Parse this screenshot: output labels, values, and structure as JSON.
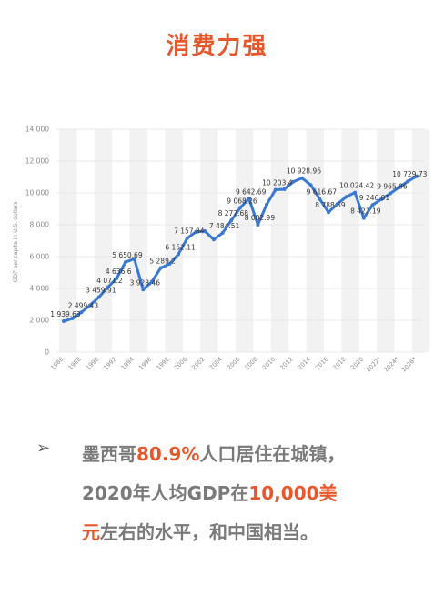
{
  "page": {
    "title": "消费力强"
  },
  "chart_data": {
    "type": "line",
    "ylabel": "GDP per capita in U.S. dollars",
    "xlabel": "",
    "ylim": [
      0,
      14000
    ],
    "yticks": [
      0,
      2000,
      4000,
      6000,
      8000,
      10000,
      12000,
      14000
    ],
    "ytick_labels": [
      "0",
      "2 000",
      "4 000",
      "6 000",
      "8 000",
      "10 000",
      "12 000",
      "14 000"
    ],
    "xtick_labels": [
      "1986",
      "1988",
      "1990",
      "1992",
      "1994",
      "1996",
      "1998",
      "2000",
      "2002",
      "2004",
      "2006",
      "2008",
      "2010",
      "2012",
      "2014",
      "2016",
      "2018",
      "2020",
      "2022*",
      "2024*",
      "2026*"
    ],
    "grid": true,
    "line_color": "#3a78d4",
    "x": [
      1986,
      1987,
      1988,
      1989,
      1990,
      1991,
      1992,
      1993,
      1994,
      1995,
      1996,
      1997,
      1998,
      1999,
      2000,
      2001,
      2002,
      2003,
      2004,
      2005,
      2006,
      2007,
      2008,
      2009,
      2010,
      2011,
      2012,
      2013,
      2014,
      2015,
      2016,
      2017,
      2018,
      2019,
      2020,
      2021,
      2022,
      2023,
      2024,
      2025,
      2026
    ],
    "values": [
      1939.63,
      2120,
      2499.43,
      2950,
      3459.91,
      4071.2,
      4636.6,
      5650.69,
      5860,
      3928.46,
      4430,
      5289.2,
      5540,
      6152.11,
      7157.84,
      7560,
      7600,
      7070,
      7484.51,
      8277.68,
      9068.26,
      9642.69,
      8002.99,
      9270,
      10203.4,
      10230,
      10700,
      10928.96,
      10500,
      9616.67,
      8788.59,
      9300,
      9750,
      10024.42,
      8421.19,
      9246.01,
      9600,
      9965.86,
      10350,
      10729.73,
      11050
    ],
    "data_labels": [
      {
        "x": 1986,
        "text": "1 939.63"
      },
      {
        "x": 1988,
        "text": "2 499.43"
      },
      {
        "x": 1990,
        "text": "3 459.91"
      },
      {
        "x": 1991,
        "text": "4 071.2"
      },
      {
        "x": 1992,
        "text": "4 636.6"
      },
      {
        "x": 1993,
        "text": "5 650.69"
      },
      {
        "x": 1995,
        "text": "3 928.46"
      },
      {
        "x": 1997,
        "text": "5 289.2"
      },
      {
        "x": 1999,
        "text": "6 152.11"
      },
      {
        "x": 2000,
        "text": "7 157.84"
      },
      {
        "x": 2004,
        "text": "7 484.51"
      },
      {
        "x": 2005,
        "text": "8 277.68"
      },
      {
        "x": 2006,
        "text": "9 068.26"
      },
      {
        "x": 2007,
        "text": "9 642.69"
      },
      {
        "x": 2008,
        "text": "8 002.99"
      },
      {
        "x": 2010,
        "text": "10 203.4"
      },
      {
        "x": 2013,
        "text": "10 928.96"
      },
      {
        "x": 2015,
        "text": "9 616.67"
      },
      {
        "x": 2016,
        "text": "8 788.59"
      },
      {
        "x": 2019,
        "text": "10 024.42"
      },
      {
        "x": 2020,
        "text": "8 421.19"
      },
      {
        "x": 2021,
        "text": "9 246.01"
      },
      {
        "x": 2023,
        "text": "9 965.86"
      },
      {
        "x": 2025,
        "text": "10 729.73"
      }
    ]
  },
  "text": {
    "bullet": "➢",
    "line1_a": "墨西哥",
    "line1_hl": "80.9%",
    "line1_b": "人口居住在城镇，",
    "line2_a": "2020年人均GDP在",
    "line2_hl": "10,000美",
    "line3_hl": "元",
    "line3_b": "左右的水平，和中国相当。"
  }
}
